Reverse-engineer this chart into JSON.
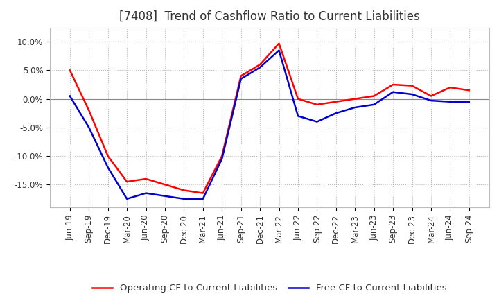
{
  "title": "[7408]  Trend of Cashflow Ratio to Current Liabilities",
  "x_labels": [
    "Jun-19",
    "Sep-19",
    "Dec-19",
    "Mar-20",
    "Jun-20",
    "Sep-20",
    "Dec-20",
    "Mar-21",
    "Jun-21",
    "Sep-21",
    "Dec-21",
    "Mar-22",
    "Jun-22",
    "Sep-22",
    "Dec-22",
    "Mar-23",
    "Jun-23",
    "Sep-23",
    "Dec-23",
    "Mar-24",
    "Jun-24",
    "Sep-24"
  ],
  "operating_cf": [
    5.0,
    -2.0,
    -10.0,
    -14.5,
    -14.0,
    -15.0,
    -16.0,
    -16.5,
    -10.0,
    4.0,
    6.0,
    9.7,
    0.0,
    -1.0,
    -0.5,
    0.0,
    0.5,
    2.5,
    2.3,
    0.5,
    2.0,
    1.5
  ],
  "free_cf": [
    0.5,
    -5.0,
    -12.0,
    -17.5,
    -16.5,
    -17.0,
    -17.5,
    -17.5,
    -10.5,
    3.5,
    5.5,
    8.5,
    -3.0,
    -4.0,
    -2.5,
    -1.5,
    -1.0,
    1.2,
    0.8,
    -0.3,
    -0.5,
    -0.5
  ],
  "operating_color": "#ff0000",
  "free_color": "#0000cc",
  "ylim": [
    -19.0,
    12.5
  ],
  "yticks": [
    -15.0,
    -10.0,
    -5.0,
    0.0,
    5.0,
    10.0
  ],
  "ytick_labels": [
    "-15.0%",
    "-10.0%",
    "-5.0%",
    "0.0%",
    "5.0%",
    "10.0%"
  ],
  "background_color": "#ffffff",
  "plot_bg_color": "#ffffff",
  "grid_color": "#bbbbbb",
  "legend_op_label": "Operating CF to Current Liabilities",
  "legend_free_label": "Free CF to Current Liabilities",
  "title_fontsize": 12,
  "axis_fontsize": 8.5,
  "legend_fontsize": 9.5
}
